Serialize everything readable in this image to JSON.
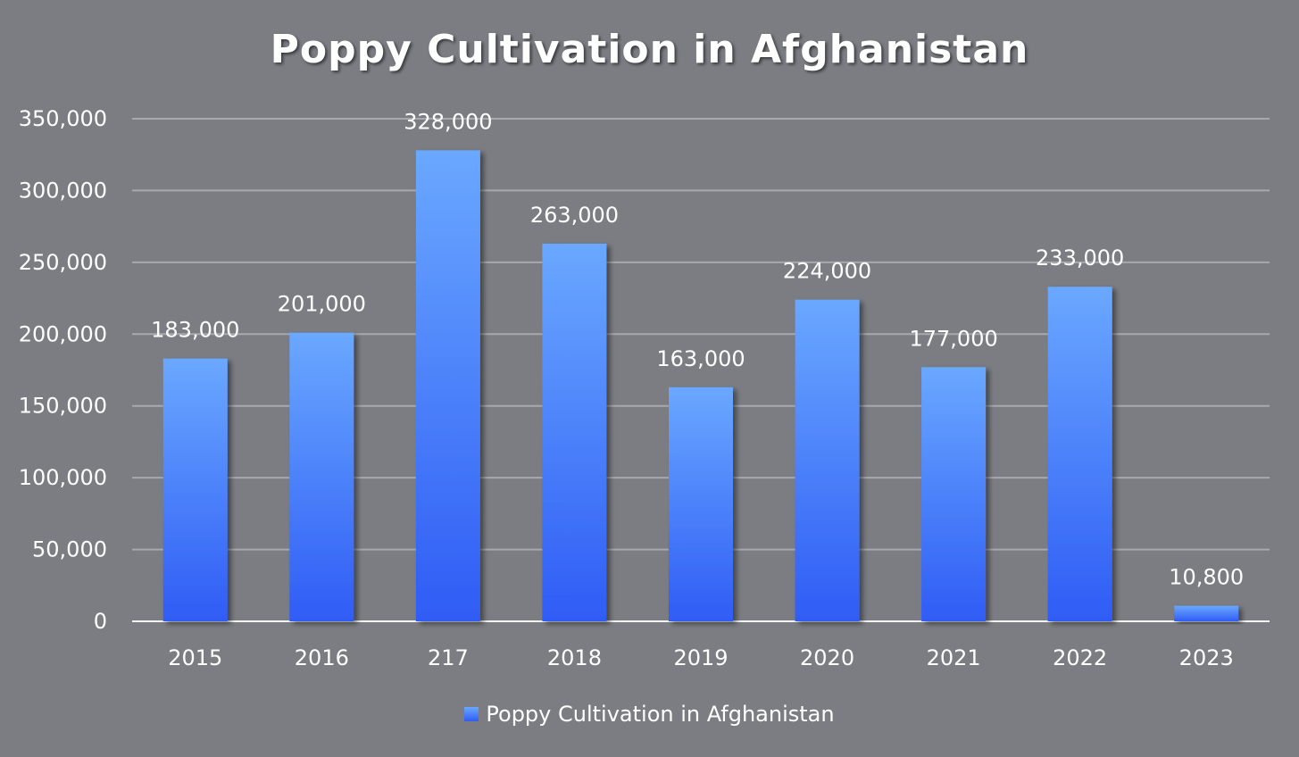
{
  "chart_data": {
    "type": "bar",
    "title": "Poppy Cultivation in Afghanistan",
    "categories": [
      "2015",
      "2016",
      "217",
      "2018",
      "2019",
      "2020",
      "2021",
      "2022",
      "2023"
    ],
    "series": [
      {
        "name": "Poppy Cultivation in Afghanistan",
        "values": [
          183000,
          201000,
          328000,
          263000,
          163000,
          224000,
          177000,
          233000,
          10800
        ],
        "labels": [
          "183,000",
          "201,000",
          "328,000",
          "263,000",
          "163,000",
          "224,000",
          "177,000",
          "233,000",
          "10,800"
        ]
      }
    ],
    "y_ticks": [
      "0",
      "50,000",
      "100,000",
      "150,000",
      "200,000",
      "250,000",
      "300,000",
      "350,000"
    ],
    "ylim": [
      0,
      350000
    ],
    "grid": true,
    "legend_position": "bottom",
    "colors": {
      "background": "#7b7d83",
      "bar_top": "#6aa8ff",
      "bar_bottom": "#2f5cf5",
      "grid": "#a7a9ae",
      "text": "#ffffff"
    }
  }
}
